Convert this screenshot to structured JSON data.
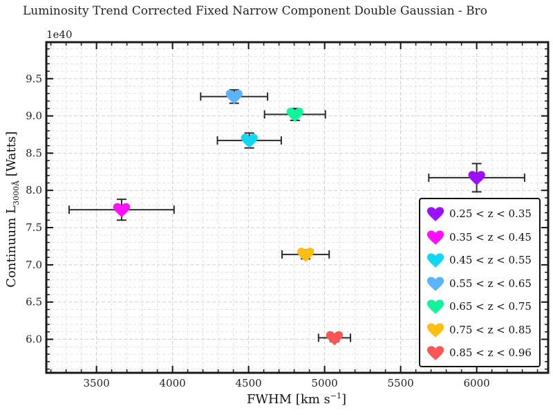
{
  "chart_data": {
    "type": "scatter",
    "title": "Luminosity Trend Corrected Fixed Narrow Component Double Gaussian - Bro",
    "xlabel_main": "FWHM [km s",
    "xlabel_sup": "−1",
    "xlabel_end": "]",
    "ylabel_main": "Continuum L",
    "ylabel_sub": "3000Å",
    "ylabel_end": " [Watts]",
    "y_offset_label": "1e40",
    "xlim": [
      3170,
      6470
    ],
    "ylim": [
      5.55,
      9.99
    ],
    "y_scale_factor": 1e+40,
    "xticks": [
      3500,
      4000,
      4500,
      5000,
      5500,
      6000
    ],
    "yticks": [
      6.0,
      6.5,
      7.0,
      7.5,
      8.0,
      8.5,
      9.0,
      9.5
    ],
    "ytick_labels": [
      "6.0",
      "6.5",
      "7.0",
      "7.5",
      "8.0",
      "8.5",
      "9.0",
      "9.5"
    ],
    "grid": true,
    "legend_position": "lower-right",
    "marker": "heart",
    "series": [
      {
        "name": "0.25 < z < 0.35",
        "color": "#9b10ff",
        "x": 6000,
        "x_err": 315,
        "y": 8.17,
        "y_err": 0.19
      },
      {
        "name": "0.35 < z < 0.45",
        "color": "#ff10ff",
        "x": 3665,
        "x_err": 345,
        "y": 7.74,
        "y_err": 0.14
      },
      {
        "name": "0.45 < z < 0.55",
        "color": "#10d8f4",
        "x": 4505,
        "x_err": 210,
        "y": 8.67,
        "y_err": 0.1
      },
      {
        "name": "0.55 < z < 0.65",
        "color": "#5ab4ff",
        "x": 4405,
        "x_err": 220,
        "y": 9.26,
        "y_err": 0.09
      },
      {
        "name": "0.65 < z < 0.75",
        "color": "#10f59a",
        "x": 4805,
        "x_err": 200,
        "y": 9.02,
        "y_err": 0.08
      },
      {
        "name": "0.75 < z < 0.85",
        "color": "#ffbe10",
        "x": 4875,
        "x_err": 155,
        "y": 7.14,
        "y_err": 0.06
      },
      {
        "name": "0.85 < z < 0.96",
        "color": "#ff5555",
        "x": 5065,
        "x_err": 105,
        "y": 6.02,
        "y_err": 0.05
      }
    ]
  }
}
